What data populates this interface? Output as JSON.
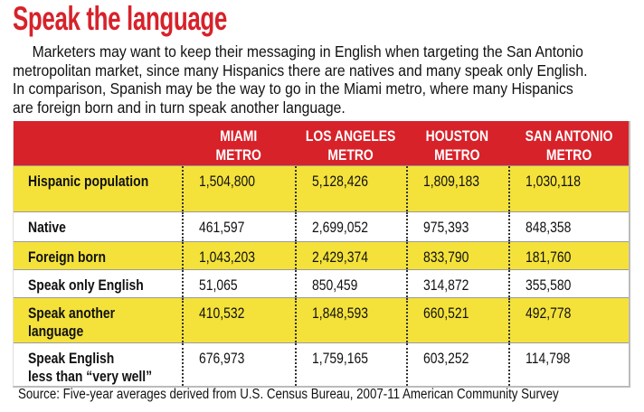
{
  "title": "Speak the language",
  "intro_lines": [
    "Marketers may want to keep their messaging in English when targeting the San Antonio",
    "metropolitan market, since many Hispanics there are natives and many speak only English.",
    "In comparison, Spanish may be the way to go in the Miami metro, where many Hispanics",
    "are foreign born and in turn speak another language."
  ],
  "colors": {
    "accent_red": "#d7222a",
    "highlight_yellow": "#f4e23b"
  },
  "chart_data": {
    "type": "table",
    "title": "Speak the language",
    "columns": [
      [
        "MIAMI",
        "METRO"
      ],
      [
        "LOS ANGELES",
        "METRO"
      ],
      [
        "HOUSTON",
        "METRO"
      ],
      [
        "SAN ANTONIO",
        "METRO"
      ]
    ],
    "rows": [
      {
        "label": [
          "Hispanic population"
        ],
        "values": [
          "1,504,800",
          "5,128,426",
          "1,809,183",
          "1,030,118"
        ],
        "highlight": true
      },
      {
        "label": [
          "Native"
        ],
        "values": [
          "461,597",
          "2,699,052",
          "975,393",
          "848,358"
        ],
        "highlight": false
      },
      {
        "label": [
          "Foreign born"
        ],
        "values": [
          "1,043,203",
          "2,429,374",
          "833,790",
          "181,760"
        ],
        "highlight": true
      },
      {
        "label": [
          "Speak only English"
        ],
        "values": [
          "51,065",
          "850,459",
          "314,872",
          "355,580"
        ],
        "highlight": false
      },
      {
        "label": [
          "Speak another",
          "language"
        ],
        "values": [
          "410,532",
          "1,848,593",
          "660,521",
          "492,778"
        ],
        "highlight": true
      },
      {
        "label": [
          "Speak English",
          "less than “very well”"
        ],
        "values": [
          "676,973",
          "1,759,165",
          "603,252",
          "114,798"
        ],
        "highlight": false
      }
    ],
    "source": "Source: Five-year averages derived from U.S. Census Bureau, 2007-11 American Community Survey"
  }
}
